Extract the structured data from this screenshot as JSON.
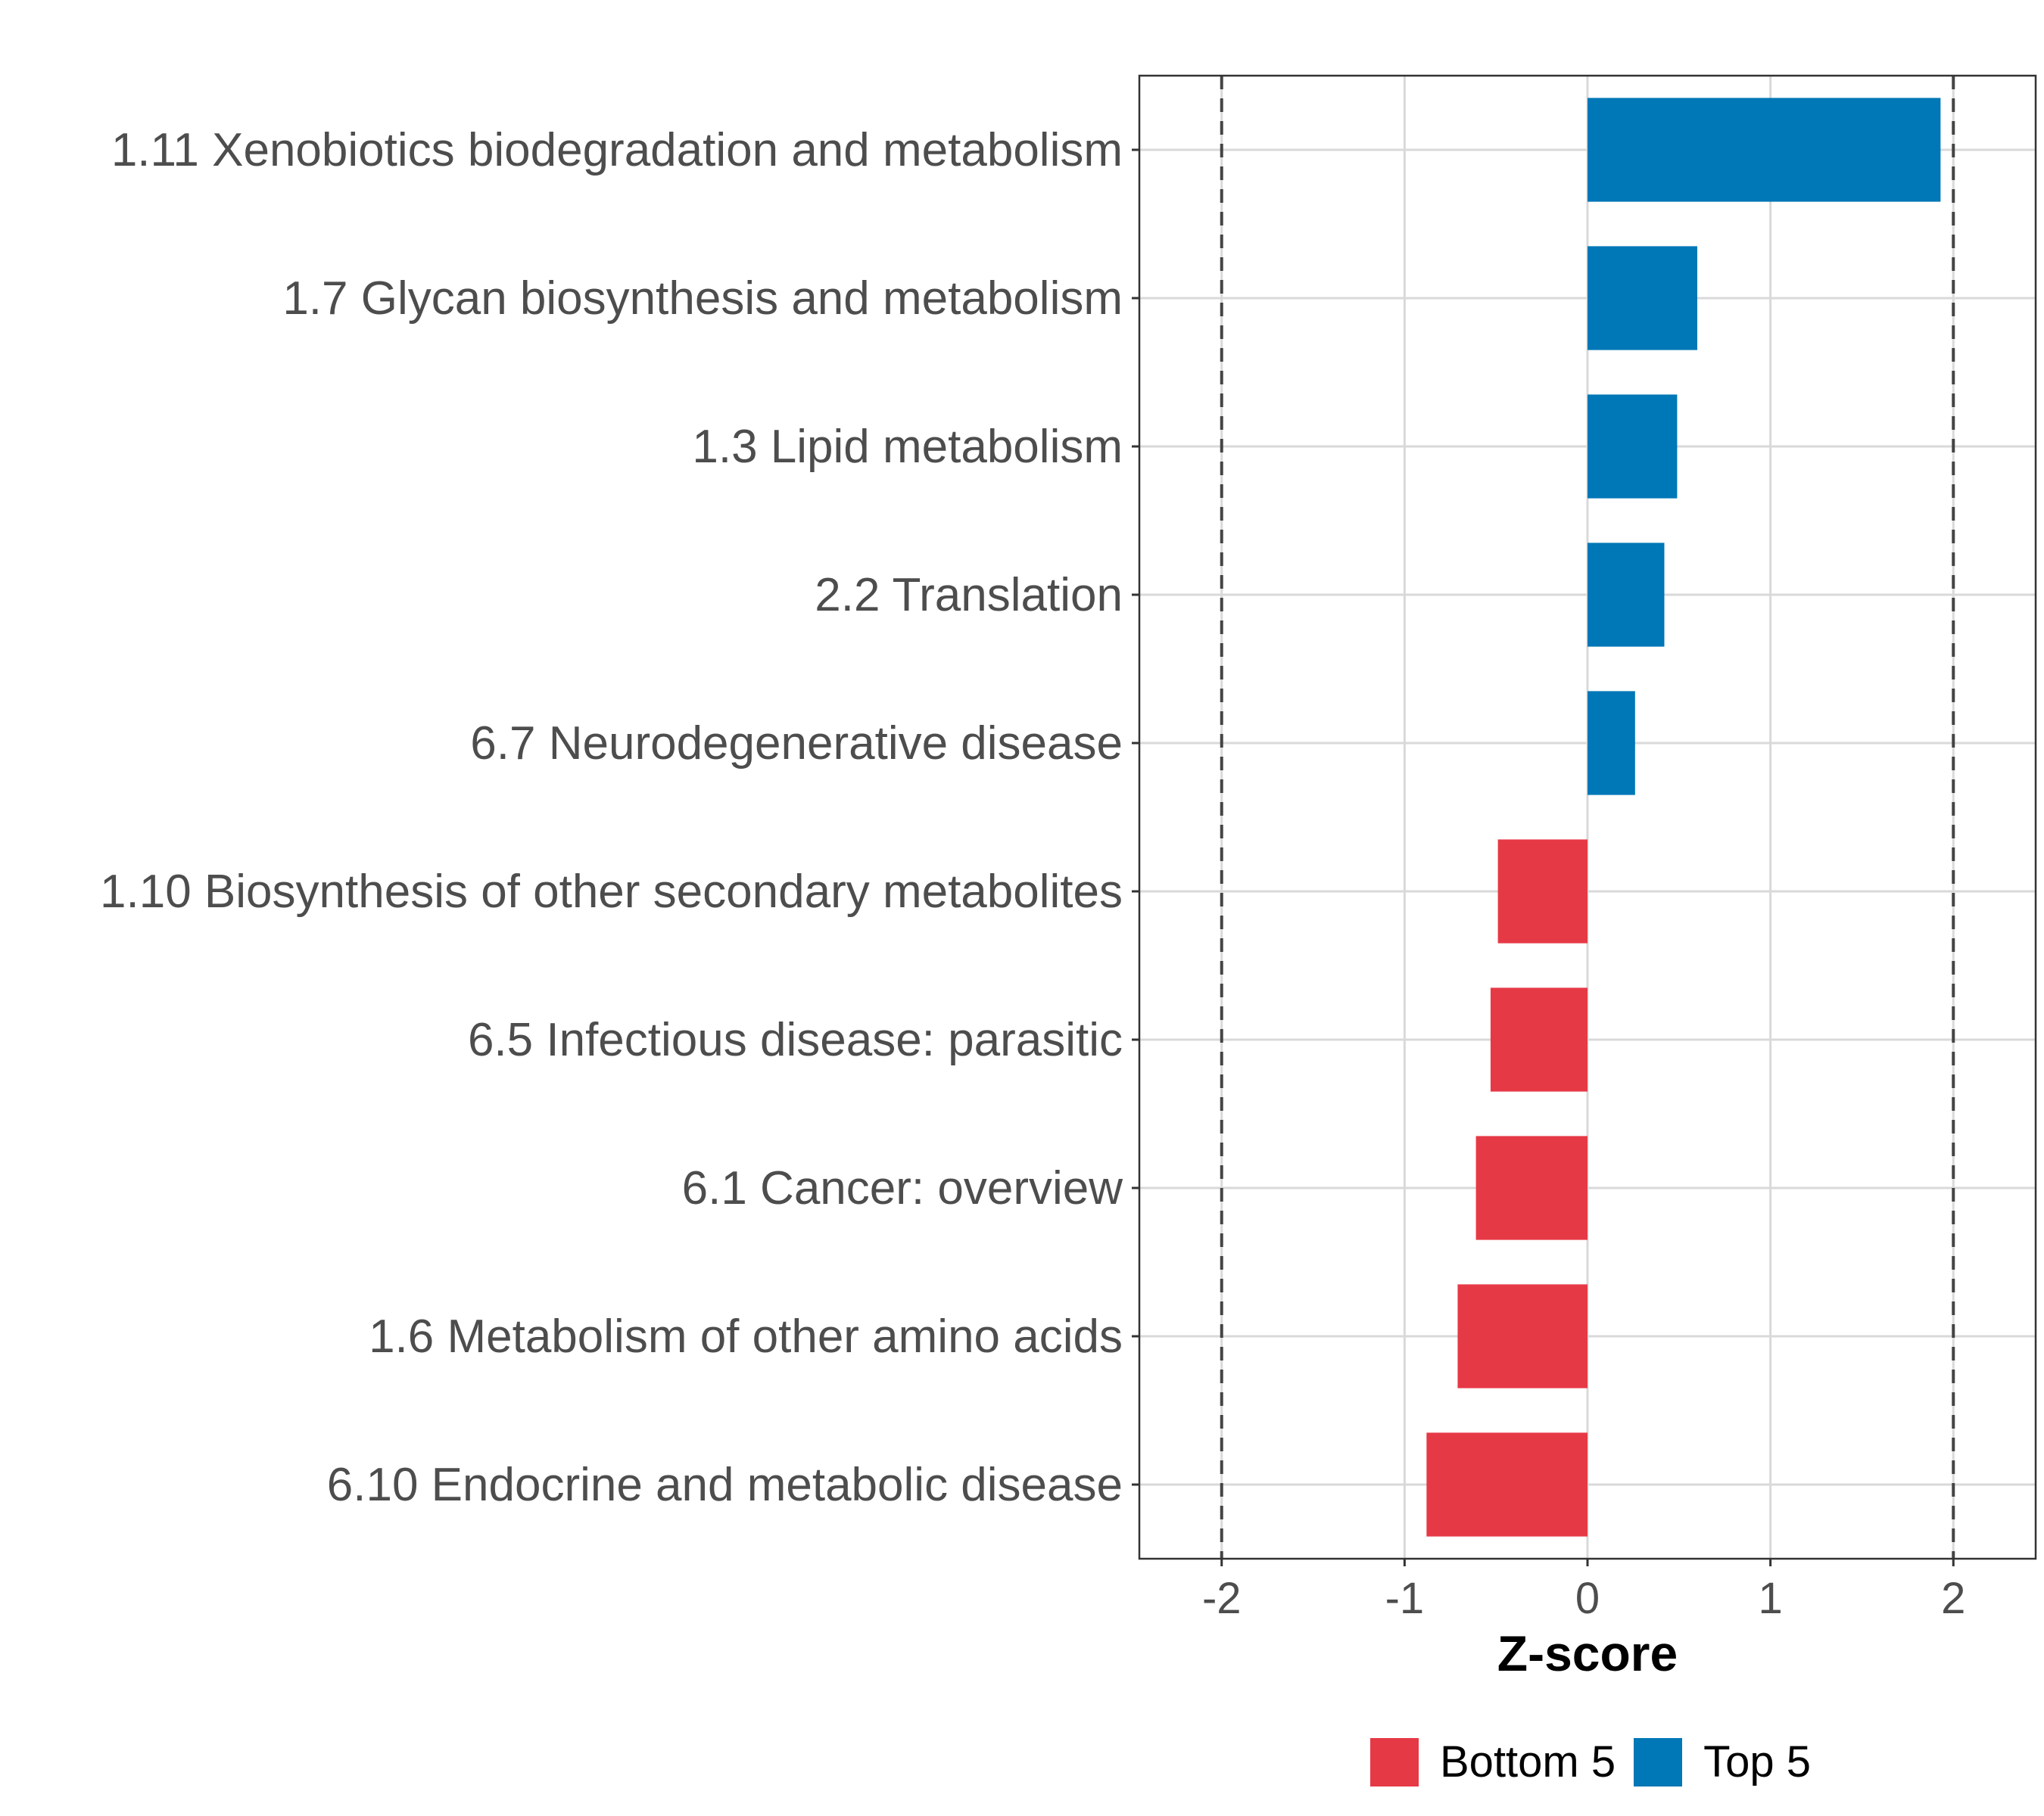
{
  "chart_data": {
    "type": "bar",
    "orientation": "horizontal",
    "title": "",
    "xlabel": "Z-score",
    "ylabel": "",
    "xlim": [
      -2.45,
      2.45
    ],
    "xticks": [
      -2,
      -1,
      0,
      1,
      2
    ],
    "xtick_labels": [
      "-2",
      "-1",
      "0",
      "1",
      "2"
    ],
    "reference_lines": [
      -2,
      2
    ],
    "grid": true,
    "categories": [
      "1.11 Xenobiotics biodegradation and metabolism",
      "1.7 Glycan biosynthesis and metabolism",
      "1.3 Lipid metabolism",
      "2.2 Translation",
      "6.7 Neurodegenerative disease",
      "1.10 Biosynthesis of other secondary metabolites",
      "6.5 Infectious disease: parasitic",
      "6.1 Cancer: overview",
      "1.6 Metabolism of other amino acids",
      "6.10 Endocrine and metabolic disease"
    ],
    "values": [
      1.93,
      0.6,
      0.49,
      0.42,
      0.26,
      -0.49,
      -0.53,
      -0.61,
      -0.71,
      -0.88
    ],
    "groups": [
      "Top 5",
      "Top 5",
      "Top 5",
      "Top 5",
      "Top 5",
      "Bottom 5",
      "Bottom 5",
      "Bottom 5",
      "Bottom 5",
      "Bottom 5"
    ],
    "legend": [
      {
        "label": "Bottom 5",
        "color": "#E63946"
      },
      {
        "label": "Top 5",
        "color": "#0077B6"
      }
    ],
    "legend_position": "bottom"
  }
}
